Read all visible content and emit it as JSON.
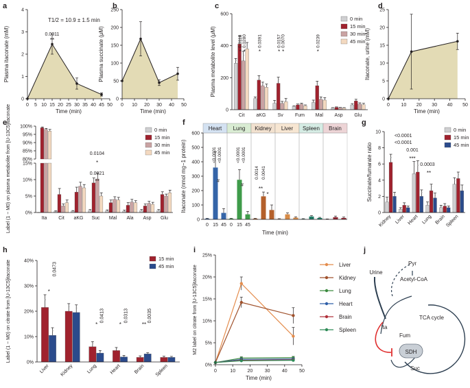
{
  "colors": {
    "area": "#e3dbb5",
    "c0": "#cfcfd1",
    "c15": "#a0222e",
    "c30": "#c9a3a3",
    "c45": "#f3d9c0",
    "blue": "#2b4b8c",
    "heart_bar": "#3565a8",
    "lung_bar": "#3f9b4a",
    "kidney_bar": "#b4602b",
    "liver_bar": "#d78b47",
    "spleen_bar": "#1f7a65",
    "brain_bar": "#8e2531",
    "heart_box": "#d4e2f2",
    "lung_box": "#d9ecd3",
    "kidney_box": "#f2e1cf",
    "liver_box": "#f7e6d2",
    "spleen_box": "#d5ece4",
    "brain_box": "#edd4d6",
    "liver": "#e48c4c",
    "kidney": "#a0522d",
    "lung": "#3b8a3e",
    "heart": "#2f5fa8",
    "brain": "#b0303a",
    "spleen": "#2e8b57",
    "red": "#e03030",
    "ink": "#231f20"
  },
  "panels": {
    "a": {
      "letter": "a",
      "type": "area",
      "title": "T1/2 = 10.9 ± 1.5 min",
      "ylabel": "Plasma itaconate (mM)",
      "xlabel": "Time (min)",
      "xlim": [
        0,
        50
      ],
      "ylim": [
        0,
        4
      ],
      "xticks": [
        "0",
        "5",
        "10",
        "15",
        "20",
        "25",
        "30",
        "35",
        "40",
        "45",
        "50"
      ],
      "yticks": [
        "0",
        "1",
        "2",
        "3",
        "4"
      ],
      "x": [
        0,
        15,
        30,
        45
      ],
      "y": [
        0,
        2.45,
        0.68,
        0.19
      ],
      "err": [
        0,
        0.45,
        0.25,
        0.07
      ],
      "annotations": [
        {
          "x": 15,
          "pval": "0.0011",
          "stars": "**"
        }
      ]
    },
    "b": {
      "letter": "b",
      "type": "area",
      "title": "",
      "ylabel": "Plasma succinate (μM)",
      "xlabel": "Time (min)",
      "xlim": [
        0,
        50
      ],
      "ylim": [
        0,
        250
      ],
      "xticks": [
        "0",
        "10",
        "20",
        "30",
        "40",
        "50"
      ],
      "yticks": [
        "0",
        "50",
        "100",
        "150",
        "200",
        "250"
      ],
      "x": [
        0,
        15,
        30,
        45
      ],
      "y": [
        50,
        168,
        45,
        70
      ],
      "err": [
        0,
        48,
        8,
        18
      ],
      "annotations": []
    },
    "d": {
      "letter": "d",
      "type": "area",
      "title": "",
      "ylabel": "Itaconate, urine (mM)",
      "xlabel": "Time (min)",
      "xlim": [
        0,
        50
      ],
      "ylim": [
        0,
        25
      ],
      "xticks": [
        "0",
        "10",
        "20",
        "30",
        "40",
        "50"
      ],
      "yticks": [
        "0",
        "5",
        "10",
        "15",
        "20",
        "25"
      ],
      "x": [
        0,
        15,
        45
      ],
      "y": [
        0,
        13.2,
        16.1
      ],
      "err": [
        0,
        10.5,
        2.3
      ],
      "annotations": []
    },
    "c": {
      "letter": "c",
      "type": "bar",
      "ylabel": "Plasma metabolite level (μM)",
      "xlabel": "",
      "ylim": [
        0,
        600
      ],
      "yticks": [
        "0",
        "200",
        "400",
        "600"
      ],
      "categories": [
        "Cit",
        "aKG",
        "Sv",
        "Fum",
        "Mal",
        "Asp",
        "Glu"
      ],
      "series": [
        {
          "name": "0 min",
          "color": "c0",
          "values": [
            290,
            70,
            40,
            20,
            45,
            10,
            30
          ],
          "err": [
            30,
            10,
            18,
            5,
            15,
            3,
            8
          ]
        },
        {
          "name": "15 min",
          "color": "c15",
          "values": [
            410,
            185,
            165,
            30,
            150,
            15,
            55
          ],
          "err": [
            50,
            28,
            38,
            6,
            28,
            3,
            10
          ]
        },
        {
          "name": "30 min",
          "color": "c30",
          "values": [
            305,
            150,
            40,
            35,
            65,
            12,
            35
          ],
          "err": [
            60,
            22,
            12,
            6,
            15,
            3,
            8
          ]
        },
        {
          "name": "45 min",
          "color": "c45",
          "values": [
            380,
            140,
            50,
            25,
            60,
            10,
            32
          ],
          "err": [
            40,
            20,
            20,
            5,
            15,
            3,
            8
          ]
        }
      ],
      "pvals": [
        "0.0118",
        "0.0280",
        "0.0391",
        "0.0157",
        "0.0070",
        "0.0239"
      ],
      "legend": [
        "0 min",
        "15 min",
        "30 min",
        "45 min"
      ]
    },
    "e": {
      "letter": "e",
      "type": "bar",
      "ylabel": "Label (1 − M0) on plasma metabolite from [U-13C5]itaconate",
      "xlabel": "",
      "yticks_top": [
        "80%",
        "85%",
        "90%",
        "95%",
        "100%"
      ],
      "yticks_bottom": [
        "0%",
        "5%",
        "10%",
        "15%"
      ],
      "categories": [
        "Ita",
        "Cit",
        "aKG",
        "Suc",
        "Mal",
        "Ala",
        "Asp",
        "Glu"
      ],
      "series": [
        {
          "name": "0 min",
          "color": "c0",
          "values": [
            0,
            0.3,
            0.4,
            0.6,
            0.5,
            0.4,
            0.6,
            0.6
          ],
          "err": [
            0,
            0.2,
            0.2,
            0.3,
            0.3,
            0.3,
            0.3,
            0.3
          ]
        },
        {
          "name": "15 min",
          "color": "c15",
          "values": [
            99,
            5.5,
            6.2,
            9.0,
            3.0,
            2.2,
            2.0,
            5.5
          ],
          "err": [
            0.5,
            1.8,
            1.5,
            1.5,
            0.8,
            0.8,
            0.6,
            0.8
          ]
        },
        {
          "name": "30 min",
          "color": "c30",
          "values": [
            98,
            2.0,
            8.0,
            10.2,
            4.0,
            3.2,
            2.8,
            5.0
          ],
          "err": [
            0.6,
            0.6,
            1.2,
            1.8,
            0.8,
            0.8,
            0.6,
            0.6
          ]
        },
        {
          "name": "45 min",
          "color": "c45",
          "values": [
            97,
            3.0,
            7.5,
            5.0,
            3.8,
            3.0,
            2.5,
            6.0
          ],
          "err": [
            1.0,
            0.8,
            1.0,
            1.0,
            0.8,
            0.6,
            0.6,
            0.8
          ]
        }
      ],
      "pvals": [
        "0.0104",
        "0.0021"
      ],
      "legend": [
        "0 min",
        "15 min",
        "30 min",
        "45 min"
      ]
    },
    "f": {
      "letter": "f",
      "type": "bar",
      "ylabel": "Itaconate (nmol mg−1 protein)",
      "xlabel": "Time (min)",
      "ylim": [
        0,
        600
      ],
      "yticks": [
        "0",
        "100",
        "200",
        "300",
        "400",
        "500",
        "600"
      ],
      "xticks": [
        "0",
        "15",
        "45"
      ],
      "tissues": [
        {
          "name": "Heart",
          "color": "heart_bar",
          "box": "heart_box",
          "values": [
            5,
            360,
            45
          ],
          "err": [
            2,
            110,
            30
          ]
        },
        {
          "name": "Lung",
          "color": "lung_bar",
          "box": "lung_box",
          "values": [
            5,
            275,
            35
          ],
          "err": [
            2,
            70,
            20
          ]
        },
        {
          "name": "Kidney",
          "color": "kidney_bar",
          "box": "kidney_box",
          "values": [
            5,
            160,
            65
          ],
          "err": [
            2,
            30,
            35
          ]
        },
        {
          "name": "Liver",
          "color": "liver_bar",
          "box": "liver_box",
          "values": [
            3,
            35,
            12
          ],
          "err": [
            2,
            10,
            6
          ]
        },
        {
          "name": "Spleen",
          "color": "spleen_bar",
          "box": "spleen_box",
          "values": [
            3,
            20,
            10
          ],
          "err": [
            2,
            6,
            4
          ]
        },
        {
          "name": "Brain",
          "color": "brain_bar",
          "box": "brain_box",
          "values": [
            2,
            15,
            10
          ],
          "err": [
            1,
            8,
            6
          ]
        }
      ],
      "pvals": [
        "<0.0001",
        "<0.0001",
        "<0.0001",
        "<0.0001",
        "0.0014",
        "0.0041"
      ]
    },
    "g": {
      "letter": "g",
      "type": "bar",
      "ylabel": "Succinate/fumarate ratio",
      "xlabel": "",
      "ylim": [
        0,
        10
      ],
      "yticks": [
        "0",
        "2",
        "4",
        "6",
        "8",
        "10"
      ],
      "categories": [
        "Kidney",
        "Liver",
        "Heart",
        "Lung",
        "Brain",
        "Spleen"
      ],
      "series": [
        {
          "name": "0 min",
          "color": "c0",
          "values": [
            1.3,
            0.4,
            4.8,
            0.9,
            0.6,
            3.5
          ],
          "err": [
            0.6,
            0.2,
            1.5,
            0.4,
            0.3,
            0.8
          ]
        },
        {
          "name": "15 min",
          "color": "c15",
          "values": [
            6.2,
            0.9,
            5.0,
            2.7,
            0.8,
            4.2
          ],
          "err": [
            1.0,
            0.3,
            1.4,
            0.8,
            0.3,
            0.8
          ]
        },
        {
          "name": "45 min",
          "color": "blue",
          "values": [
            2.0,
            0.6,
            2.0,
            1.8,
            0.6,
            2.7
          ],
          "err": [
            0.5,
            0.2,
            0.8,
            0.6,
            0.2,
            0.7
          ]
        }
      ],
      "pvals": [
        "<0.0001",
        "<0.0001",
        "0.001",
        "0.0003"
      ],
      "legend": [
        "0 min",
        "15 min",
        "45 min"
      ]
    },
    "h": {
      "letter": "h",
      "type": "bar",
      "ylabel": "Label (1 − M0) on citrate from [U-13C5]itaconate",
      "xlabel": "",
      "ylim": [
        0,
        40
      ],
      "yticks": [
        "0%",
        "10%",
        "20%",
        "30%",
        "40%"
      ],
      "categories": [
        "Liver",
        "Kidney",
        "Lung",
        "Heart",
        "Brain",
        "Spleen"
      ],
      "series": [
        {
          "name": "15 min",
          "color": "c15",
          "values": [
            21.5,
            20,
            6.0,
            4.5,
            1.8,
            1.8
          ],
          "err": [
            5,
            3,
            2,
            1.2,
            0.6,
            0.5
          ]
        },
        {
          "name": "45 min",
          "color": "blue",
          "values": [
            10.5,
            19.5,
            3.5,
            2.0,
            3.2,
            1.8
          ],
          "err": [
            3,
            3,
            1,
            0.6,
            0.5,
            0.4
          ]
        }
      ],
      "pvals": [
        "0.0473",
        "0.0413",
        "0.0313",
        "0.0035"
      ],
      "legend": [
        "15 min",
        "45 min"
      ]
    },
    "i": {
      "letter": "i",
      "type": "line",
      "ylabel": "M2 label on citrate from [U-13C5]itaconate",
      "xlabel": "Time (min)",
      "xlim": [
        0,
        50
      ],
      "ylim": [
        0,
        25
      ],
      "xticks": [
        "0",
        "10",
        "20",
        "30",
        "40",
        "50"
      ],
      "yticks": [
        "0%",
        "5%",
        "10%",
        "15%",
        "20%",
        "25%"
      ],
      "x": [
        0,
        15,
        45
      ],
      "series": [
        {
          "name": "Liver",
          "color": "liver",
          "values": [
            0.5,
            18.5,
            6.5
          ],
          "err": [
            0,
            1.5,
            2.0
          ]
        },
        {
          "name": "Kidney",
          "color": "kidney",
          "values": [
            0.5,
            14.2,
            11.2
          ],
          "err": [
            0,
            1.2,
            1.8
          ]
        },
        {
          "name": "Lung",
          "color": "lung",
          "values": [
            0.5,
            1.5,
            1.6
          ],
          "err": [
            0,
            0.3,
            0.3
          ]
        },
        {
          "name": "Heart",
          "color": "heart",
          "values": [
            0.5,
            1.2,
            1.3
          ],
          "err": [
            0,
            0.2,
            0.2
          ]
        },
        {
          "name": "Brain",
          "color": "brain",
          "values": [
            0.5,
            1.0,
            1.1
          ],
          "err": [
            0,
            0.2,
            0.2
          ]
        },
        {
          "name": "Spleen",
          "color": "spleen",
          "values": [
            0.5,
            0.9,
            1.0
          ],
          "err": [
            0,
            0.2,
            0.2
          ]
        }
      ]
    }
  },
  "j": {
    "letter": "j",
    "labels": [
      "Urine",
      "Pyr",
      "Acetyl-CoA",
      "Ita",
      "Fum",
      "TCA cycle",
      "SDH",
      "Suc"
    ]
  }
}
